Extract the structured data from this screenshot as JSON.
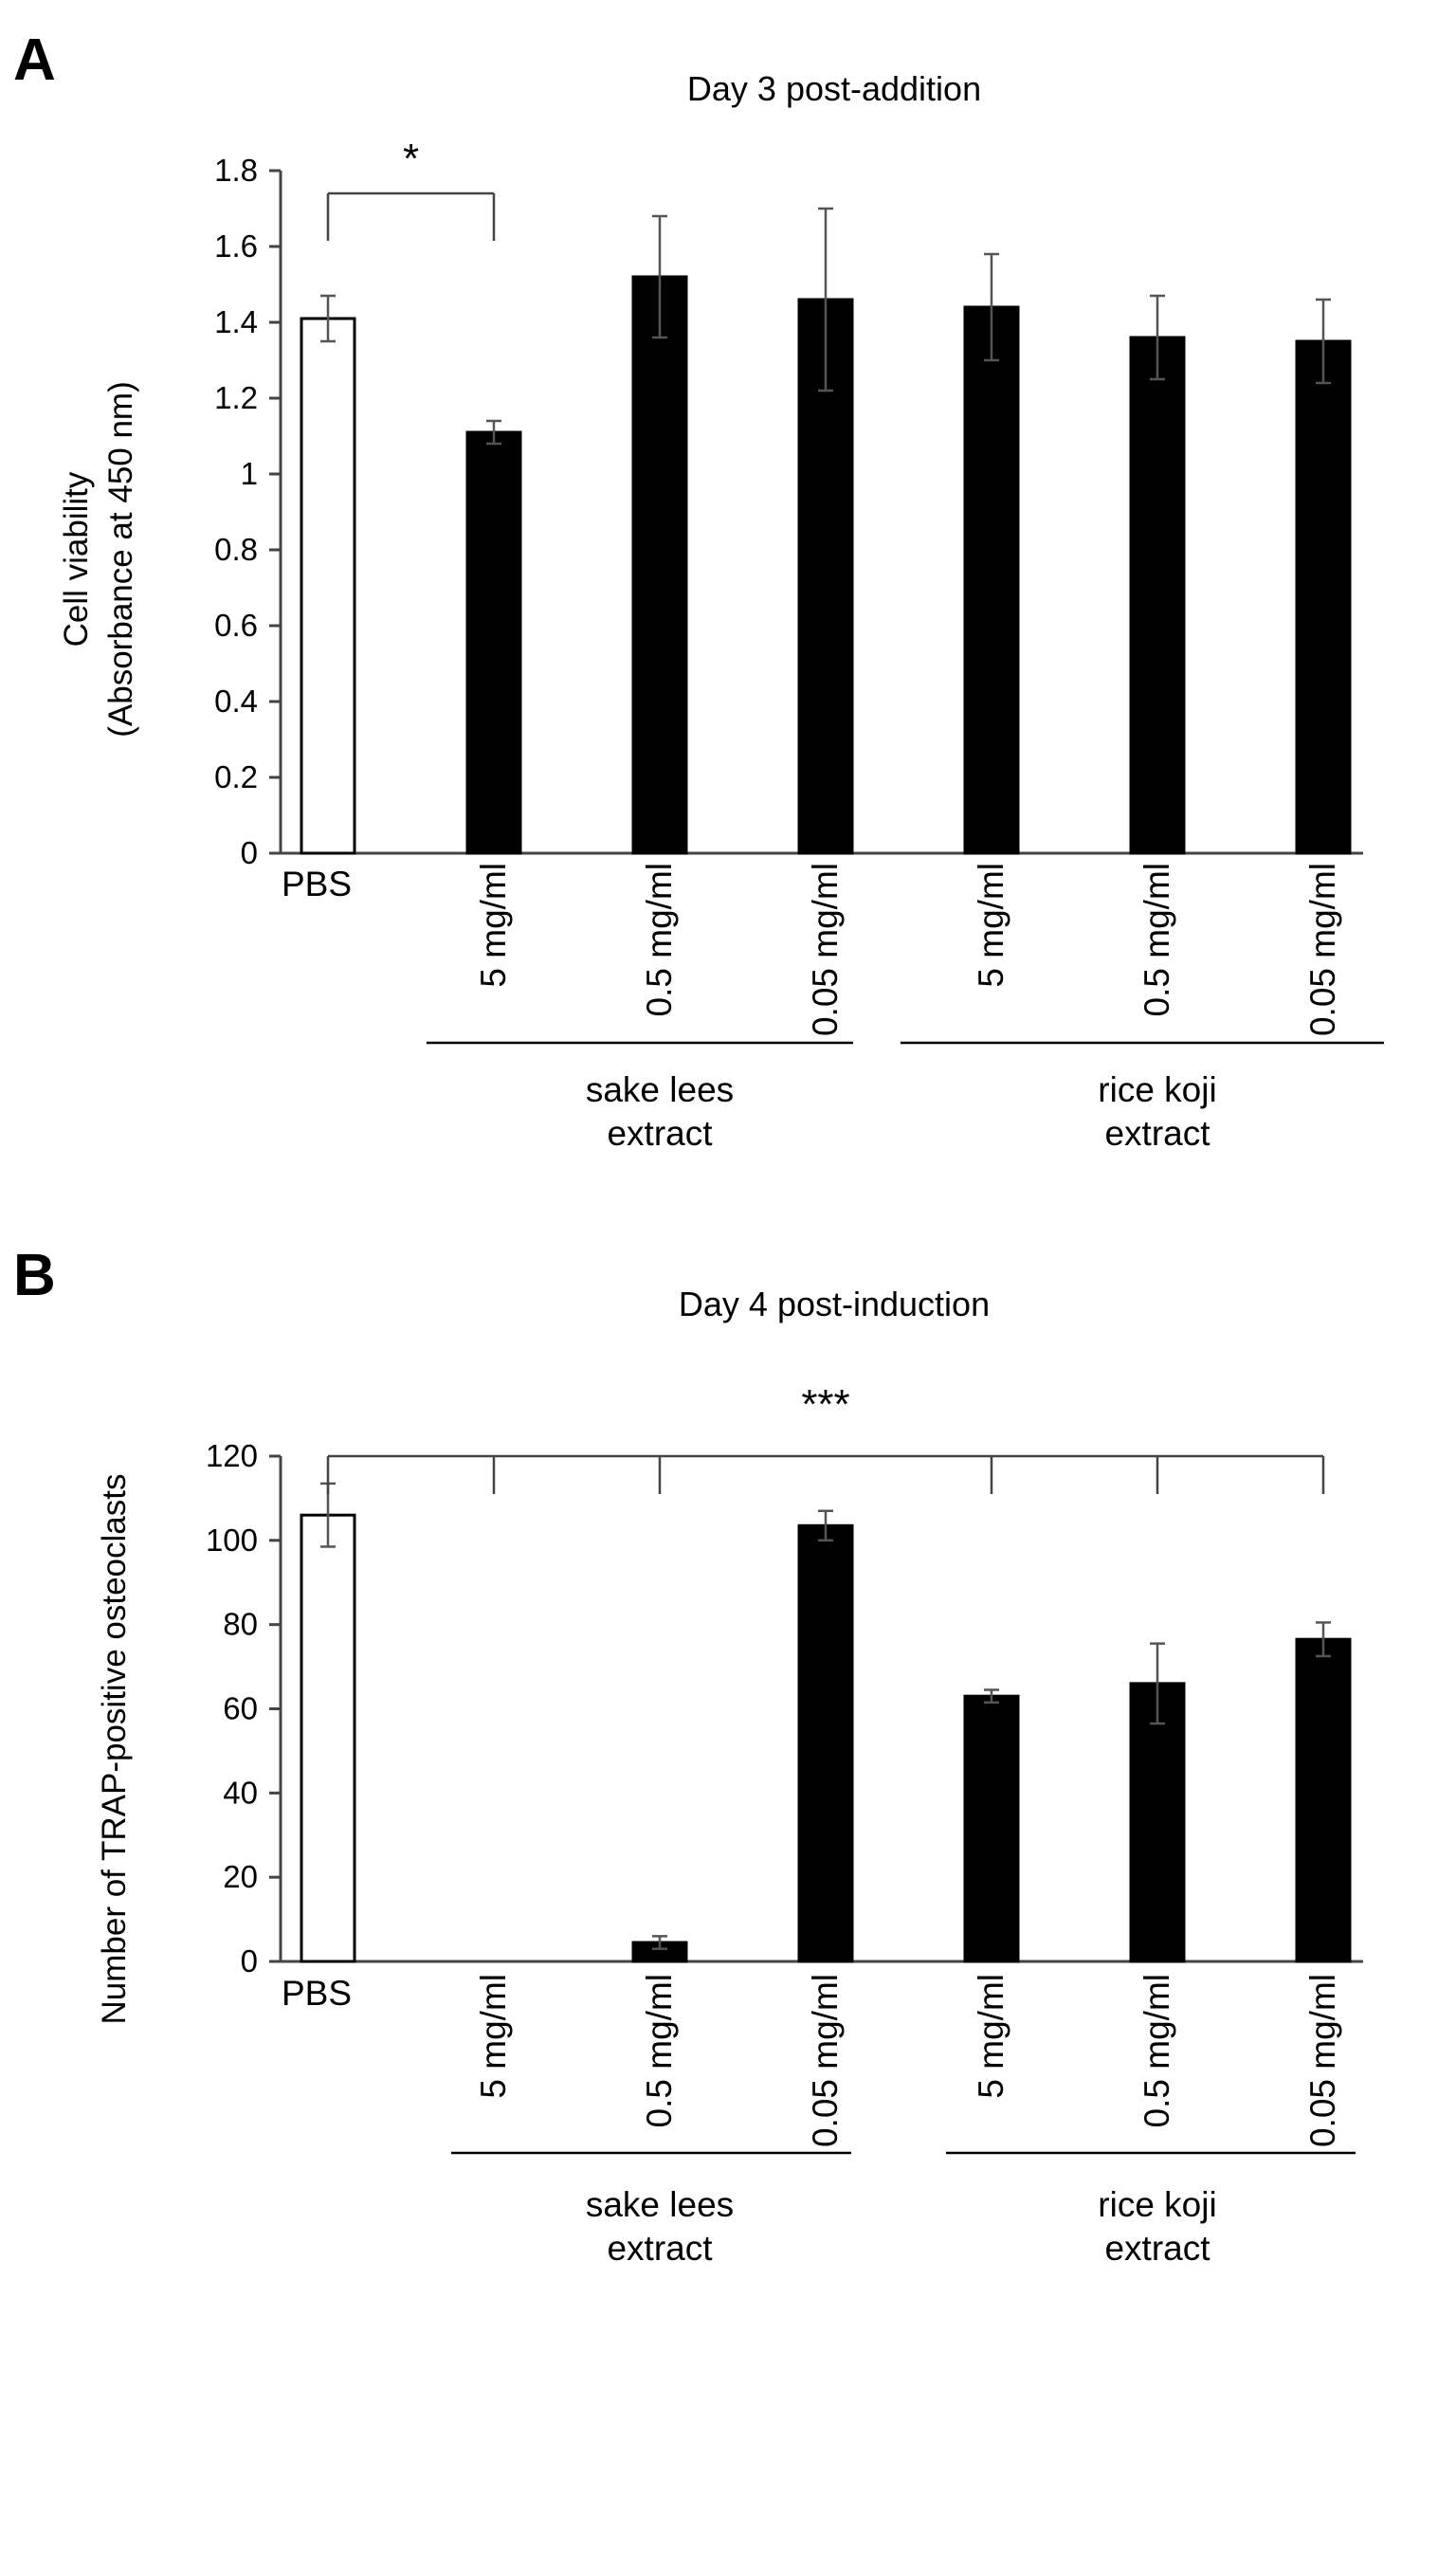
{
  "chart_data": [
    {
      "panel": "A",
      "type": "bar",
      "title": "Day 3 post-addition",
      "ylabel_lines": [
        "Cell viability",
        "(Absorbance at  450 nm)"
      ],
      "xlabel": "",
      "ylim": [
        0,
        1.8
      ],
      "yticks": [
        "0",
        "0.2",
        "0.4",
        "0.6",
        "0.8",
        "1",
        "1.2",
        "1.4",
        "1.6",
        "1.8"
      ],
      "categories": [
        "PBS",
        "5 mg/ml",
        "0.5 mg/ml",
        "0.05 mg/ml",
        "5 mg/ml",
        "0.5 mg/ml",
        "0.05 mg/ml"
      ],
      "values": [
        1.41,
        1.11,
        1.52,
        1.46,
        1.44,
        1.36,
        1.35
      ],
      "errors": [
        0.06,
        0.03,
        0.16,
        0.24,
        0.14,
        0.11,
        0.11
      ],
      "fills": [
        "#ffffff",
        "#000000",
        "#000000",
        "#000000",
        "#000000",
        "#000000",
        "#000000"
      ],
      "groups": [
        {
          "lines": [
            "sake lees",
            "extract"
          ],
          "from": 1,
          "to": 3
        },
        {
          "lines": [
            "rice koji",
            "extract"
          ],
          "from": 4,
          "to": 6
        }
      ],
      "significance": {
        "label": "*",
        "from": 0,
        "to": [
          1
        ]
      }
    },
    {
      "panel": "B",
      "type": "bar",
      "title": "Day 4 post-induction",
      "ylabel_lines": [
        "Number of TRAP-positive osteoclasts"
      ],
      "xlabel": "",
      "ylim": [
        0,
        120
      ],
      "yticks": [
        "0",
        "20",
        "40",
        "60",
        "80",
        "100",
        "120"
      ],
      "categories": [
        "PBS",
        "5 mg/ml",
        "0.5 mg/ml",
        "0.05 mg/ml",
        "5 mg/ml",
        "0.5 mg/ml",
        "0.05 mg/ml"
      ],
      "values": [
        106,
        0,
        4.5,
        103.5,
        63,
        66,
        76.5
      ],
      "errors": [
        7.5,
        0,
        1.5,
        3.5,
        1.5,
        9.5,
        4
      ],
      "fills": [
        "#ffffff",
        "#000000",
        "#000000",
        "#000000",
        "#000000",
        "#000000",
        "#000000"
      ],
      "groups": [
        {
          "lines": [
            "sake lees",
            "extract"
          ],
          "from": 1,
          "to": 3
        },
        {
          "lines": [
            "rice koji",
            "extract"
          ],
          "from": 4,
          "to": 6
        }
      ],
      "significance": {
        "label": "***",
        "from": 0,
        "to": [
          1,
          2,
          4,
          5,
          6
        ]
      }
    }
  ]
}
